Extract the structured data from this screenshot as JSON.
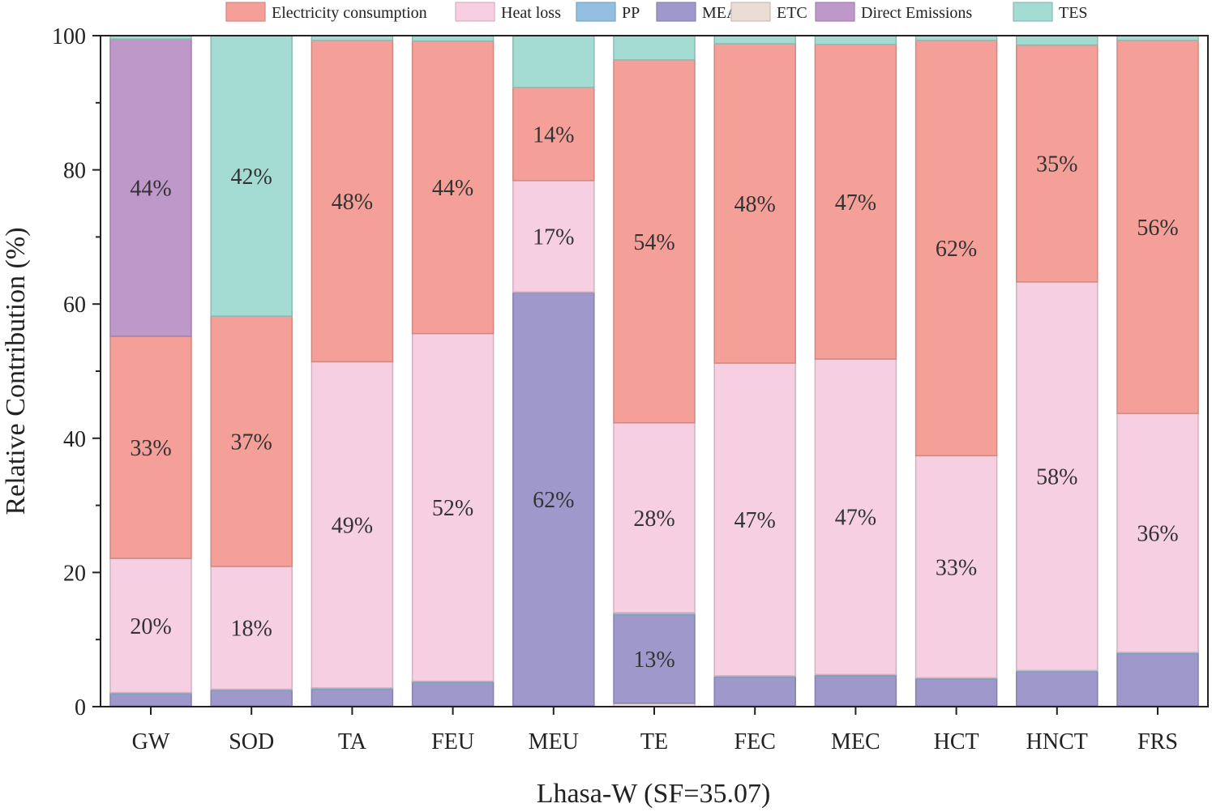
{
  "chart_data": {
    "type": "bar",
    "stacked": true,
    "title": "",
    "xlabel": "Lhasa-W (SF=35.07)",
    "ylabel": "Relative Contribution (%)",
    "ylim": [
      0,
      100
    ],
    "yticks": [
      "0",
      "20",
      "40",
      "60",
      "80",
      "100"
    ],
    "categories": [
      "GW",
      "SOD",
      "TA",
      "FEU",
      "MEU",
      "TE",
      "FEC",
      "MEC",
      "HCT",
      "HNCT",
      "FRS"
    ],
    "series": [
      {
        "name": "ETC",
        "color": "#ecdcd6",
        "values": [
          0.1,
          0.1,
          0.1,
          0.1,
          0.1,
          0.5,
          0.1,
          0.1,
          0.1,
          0.1,
          0.1
        ]
      },
      {
        "name": "MEA",
        "color": "#9e98cb",
        "values": [
          1.8,
          2.3,
          2.5,
          3.5,
          61.6,
          13.2,
          4.3,
          4.5,
          4.0,
          5.1,
          7.8
        ]
      },
      {
        "name": "PP",
        "color": "#93c0e0",
        "values": [
          0.2,
          0.2,
          0.2,
          0.2,
          0.1,
          0.3,
          0.2,
          0.2,
          0.2,
          0.2,
          0.2
        ]
      },
      {
        "name": "Heat loss",
        "color": "#f6d0e2",
        "values": [
          20.0,
          18.3,
          48.6,
          51.8,
          16.6,
          28.3,
          46.6,
          47.0,
          33.1,
          57.9,
          35.6
        ]
      },
      {
        "name": "Electricity consumption",
        "color": "#f4a098",
        "values": [
          33.1,
          37.3,
          47.9,
          43.6,
          13.9,
          54.1,
          47.6,
          46.9,
          61.9,
          35.3,
          55.6
        ]
      },
      {
        "name": "Direct Emissions",
        "color": "#be98c8",
        "values": [
          44.3,
          0.0,
          0.0,
          0.0,
          0.0,
          0.0,
          0.0,
          0.0,
          0.0,
          0.0,
          0.0
        ]
      },
      {
        "name": "TES",
        "color": "#a4dbd3",
        "values": [
          0.5,
          41.8,
          0.7,
          0.8,
          7.7,
          3.6,
          1.2,
          1.3,
          0.7,
          1.4,
          0.7
        ]
      }
    ],
    "legend": {
      "position": "top",
      "order": [
        "Electricity consumption",
        "Heat loss",
        "PP",
        "MEA",
        "ETC",
        "Direct Emissions",
        "TES"
      ]
    },
    "annotations": [
      {
        "category": "GW",
        "series": "Direct Emissions",
        "text": "44%"
      },
      {
        "category": "GW",
        "series": "Electricity consumption",
        "text": "33%"
      },
      {
        "category": "GW",
        "series": "Heat loss",
        "text": "20%"
      },
      {
        "category": "SOD",
        "series": "TES",
        "text": "42%"
      },
      {
        "category": "SOD",
        "series": "Electricity consumption",
        "text": "37%"
      },
      {
        "category": "SOD",
        "series": "Heat loss",
        "text": "18%"
      },
      {
        "category": "TA",
        "series": "Electricity consumption",
        "text": "48%"
      },
      {
        "category": "TA",
        "series": "Heat loss",
        "text": "49%"
      },
      {
        "category": "FEU",
        "series": "Electricity consumption",
        "text": "44%"
      },
      {
        "category": "FEU",
        "series": "Heat loss",
        "text": "52%"
      },
      {
        "category": "MEU",
        "series": "Electricity consumption",
        "text": "14%"
      },
      {
        "category": "MEU",
        "series": "Heat loss",
        "text": "17%"
      },
      {
        "category": "MEU",
        "series": "MEA",
        "text": "62%"
      },
      {
        "category": "TE",
        "series": "Electricity consumption",
        "text": "54%"
      },
      {
        "category": "TE",
        "series": "Heat loss",
        "text": "28%"
      },
      {
        "category": "TE",
        "series": "MEA",
        "text": "13%"
      },
      {
        "category": "FEC",
        "series": "Electricity consumption",
        "text": "48%"
      },
      {
        "category": "FEC",
        "series": "Heat loss",
        "text": "47%"
      },
      {
        "category": "MEC",
        "series": "Electricity consumption",
        "text": "47%"
      },
      {
        "category": "MEC",
        "series": "Heat loss",
        "text": "47%"
      },
      {
        "category": "HCT",
        "series": "Electricity consumption",
        "text": "62%"
      },
      {
        "category": "HCT",
        "series": "Heat loss",
        "text": "33%"
      },
      {
        "category": "HNCT",
        "series": "Electricity consumption",
        "text": "35%"
      },
      {
        "category": "HNCT",
        "series": "Heat loss",
        "text": "58%"
      },
      {
        "category": "FRS",
        "series": "Electricity consumption",
        "text": "56%"
      },
      {
        "category": "FRS",
        "series": "Heat loss",
        "text": "36%"
      }
    ]
  }
}
